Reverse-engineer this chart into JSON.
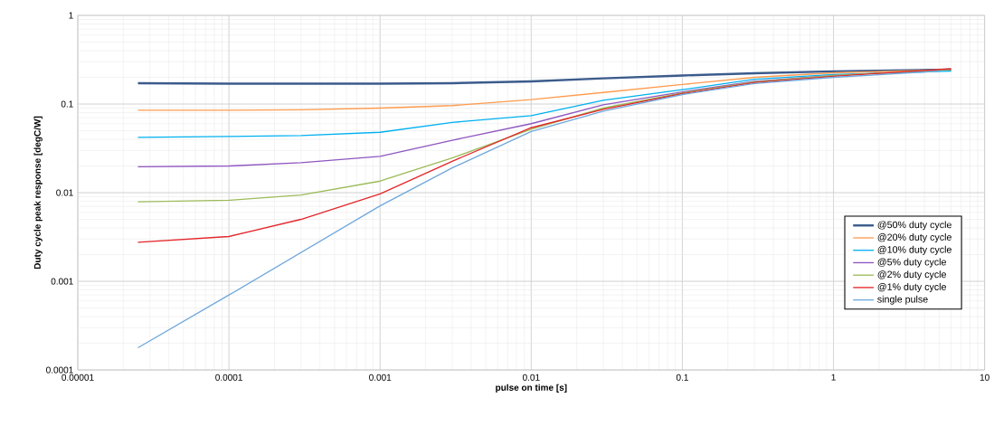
{
  "chart_data": {
    "type": "line",
    "xlabel": "pulse on time [s]",
    "ylabel": "Duty cycle peak response [degC/W]",
    "log": "xy",
    "grid": true,
    "legend": "bottom right",
    "marker": "none",
    "line_style": "solid",
    "xlim": [
      1e-05,
      10
    ],
    "ylim": [
      0.0001,
      1
    ],
    "xticks": [
      {
        "value": 1e-05,
        "label": "0.00001"
      },
      {
        "value": 0.0001,
        "label": "0.0001"
      },
      {
        "value": 0.001,
        "label": "0.001"
      },
      {
        "value": 0.01,
        "label": "0.01"
      },
      {
        "value": 0.1,
        "label": "0.1"
      },
      {
        "value": 1,
        "label": "1"
      },
      {
        "value": 10,
        "label": "10"
      }
    ],
    "yticks": [
      {
        "value": 0.0001,
        "label": "0.0001"
      },
      {
        "value": 0.001,
        "label": "0.001"
      },
      {
        "value": 0.01,
        "label": "0.01"
      },
      {
        "value": 0.1,
        "label": "0.1"
      },
      {
        "value": 1,
        "label": "1"
      }
    ],
    "x": [
      2.5e-05,
      0.0001,
      0.0003,
      0.001,
      0.003,
      0.01,
      0.03,
      0.1,
      0.3,
      1,
      6
    ],
    "series": [
      {
        "name": "@50% duty cycle",
        "color": "#3b5b8c",
        "values": [
          0.172,
          0.17,
          0.17,
          0.17,
          0.172,
          0.18,
          0.195,
          0.21,
          0.222,
          0.234,
          0.245
        ]
      },
      {
        "name": "@20% duty cycle",
        "color": "#ff9b4e",
        "values": [
          0.085,
          0.085,
          0.086,
          0.09,
          0.096,
          0.112,
          0.135,
          0.166,
          0.2,
          0.225,
          0.245
        ]
      },
      {
        "name": "@10% duty cycle",
        "color": "#00b0f0",
        "values": [
          0.042,
          0.043,
          0.044,
          0.048,
          0.062,
          0.074,
          0.11,
          0.145,
          0.19,
          0.215,
          0.235
        ]
      },
      {
        "name": "@5% duty cycle",
        "color": "#8e56c0",
        "values": [
          0.0196,
          0.02,
          0.0218,
          0.0257,
          0.039,
          0.06,
          0.098,
          0.137,
          0.18,
          0.21,
          0.245
        ]
      },
      {
        "name": "@2% duty cycle",
        "color": "#9bbb59",
        "values": [
          0.0079,
          0.0082,
          0.0094,
          0.0135,
          0.0246,
          0.052,
          0.09,
          0.134,
          0.177,
          0.21,
          0.245
        ]
      },
      {
        "name": "@1% duty cycle",
        "color": "#e3262b",
        "values": [
          0.00275,
          0.0032,
          0.005,
          0.0097,
          0.0226,
          0.054,
          0.087,
          0.131,
          0.174,
          0.205,
          0.25
        ]
      },
      {
        "name": "single pulse",
        "color": "#6fa8dc",
        "x": [
          2.5e-05,
          0.0001,
          0.001,
          0.003,
          0.01,
          0.03,
          0.1,
          0.3,
          1,
          5
        ],
        "values": [
          0.000178,
          0.0007,
          0.0071,
          0.019,
          0.049,
          0.083,
          0.128,
          0.17,
          0.2,
          0.235
        ]
      }
    ]
  }
}
